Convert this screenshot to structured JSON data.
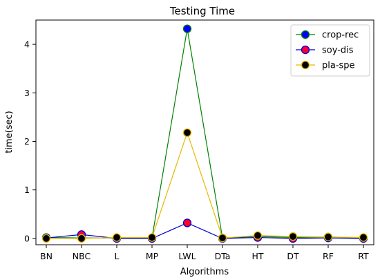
{
  "chart_data": {
    "type": "line",
    "title": "Testing Time",
    "xlabel": "Algorithms",
    "ylabel": "time(sec)",
    "categories": [
      "BN",
      "NBC",
      "L",
      "MP",
      "LWL",
      "DTa",
      "HT",
      "DT",
      "RF",
      "RT"
    ],
    "ylim": [
      -0.13,
      4.5
    ],
    "yticks": [
      0,
      1,
      2,
      3,
      4
    ],
    "grid": false,
    "legend_position": "top-right",
    "series": [
      {
        "name": "crop-rec",
        "line_color": "#008000",
        "marker_face": "#0000ff",
        "marker_edge": "#008000",
        "values": [
          0.02,
          0.01,
          0.01,
          0.01,
          4.32,
          0.01,
          0.04,
          0.02,
          0.03,
          0.01
        ]
      },
      {
        "name": "soy-dis",
        "line_color": "#0000cc",
        "marker_face": "#ff0033",
        "marker_edge": "#0000cc",
        "values": [
          0.01,
          0.08,
          0.0,
          0.0,
          0.32,
          0.0,
          0.02,
          0.0,
          0.01,
          0.0
        ]
      },
      {
        "name": "pla-spe",
        "line_color": "#e6b800",
        "marker_face": "#000000",
        "marker_edge": "#e6b800",
        "values": [
          0.0,
          0.0,
          0.02,
          0.02,
          2.18,
          0.01,
          0.06,
          0.04,
          0.03,
          0.02
        ]
      }
    ]
  }
}
